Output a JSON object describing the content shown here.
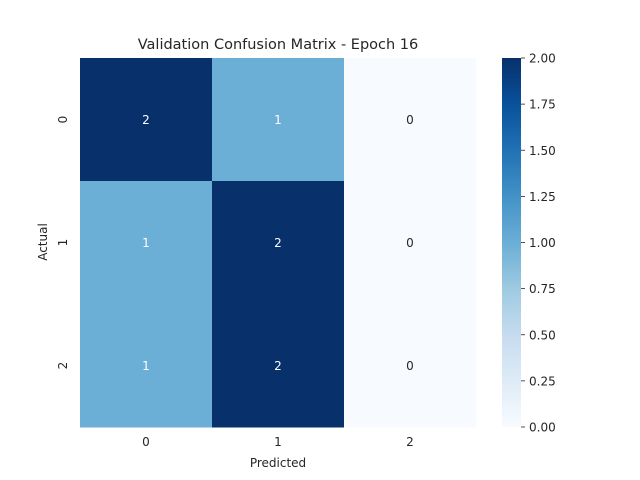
{
  "chart_data": {
    "type": "heatmap",
    "title": "Validation Confusion Matrix - Epoch 16",
    "xlabel": "Predicted",
    "ylabel": "Actual",
    "x_categories": [
      "0",
      "1",
      "2"
    ],
    "y_categories": [
      "0",
      "1",
      "2"
    ],
    "values": [
      [
        2,
        1,
        0
      ],
      [
        1,
        2,
        0
      ],
      [
        1,
        2,
        0
      ]
    ],
    "colormap": "Blues",
    "colorbar": {
      "min": 0,
      "max": 2,
      "ticks": [
        "0.00",
        "0.25",
        "0.50",
        "0.75",
        "1.00",
        "1.25",
        "1.50",
        "1.75",
        "2.00"
      ]
    },
    "colors": {
      "low": "#f7fbff",
      "mid": "#6baed6",
      "high": "#08306b",
      "annotation_light": "#ffffff",
      "annotation_dark": "#262626"
    }
  }
}
